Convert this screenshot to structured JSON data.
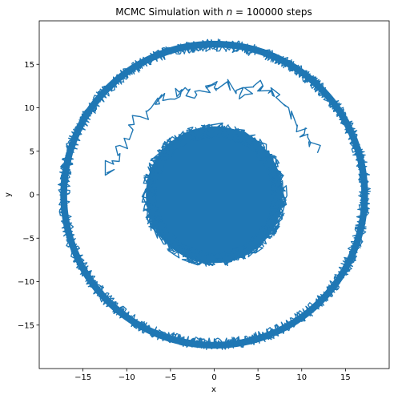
{
  "chart_data": {
    "type": "line",
    "title": "MCMC Simulation with n = 100000 steps",
    "title_prefix": "MCMC Simulation with ",
    "title_var": "n",
    "title_suffix": " = 100000 steps",
    "xlabel": "x",
    "ylabel": "y",
    "xlim": [
      -20,
      20
    ],
    "ylim": [
      -20,
      20
    ],
    "xticks": [
      -15,
      -10,
      -5,
      0,
      5,
      10,
      15
    ],
    "yticks": [
      -15,
      -10,
      -5,
      0,
      5,
      10,
      15
    ],
    "xtick_labels": [
      "−15",
      "−10",
      "−5",
      "0",
      "5",
      "10",
      "15"
    ],
    "ytick_labels": [
      "−15",
      "−10",
      "−5",
      "0",
      "5",
      "10",
      "15"
    ],
    "grid": false,
    "legend": false,
    "line_color": "#1f77b4",
    "series": [
      {
        "structure": "inner filled disk",
        "center": [
          0,
          0
        ],
        "radius": 8.0
      },
      {
        "structure": "outer ring",
        "center": [
          0,
          0
        ],
        "radius": 17.2,
        "band_width": 1.4
      },
      {
        "structure": "transition path between inner disk and outer ring",
        "x": [
          -12.3,
          -11.5,
          -11.0,
          -10.3,
          -9.3,
          -8.5,
          -7.2,
          -6.0,
          -5.0,
          -4.0,
          -3.0,
          -2.0,
          -1.0,
          0.0,
          1.5,
          2.5,
          3.5,
          4.5,
          5.5,
          6.5,
          7.5,
          8.5,
          9.5,
          10.3,
          11.0,
          11.8
        ],
        "y": [
          2.5,
          3.5,
          4.5,
          6.5,
          7.5,
          9.0,
          10.0,
          11.5,
          11.0,
          11.8,
          12.0,
          11.5,
          12.5,
          12.3,
          13.0,
          12.0,
          11.5,
          12.5,
          12.5,
          12.0,
          11.5,
          10.0,
          8.0,
          7.0,
          6.0,
          4.8
        ]
      }
    ]
  }
}
